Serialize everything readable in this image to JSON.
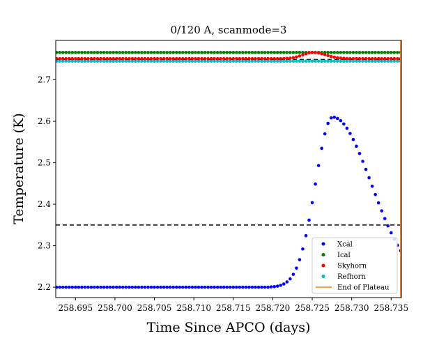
{
  "chart_data": {
    "type": "scatter",
    "title": "0/120 A, scanmode=3",
    "xlabel": "Time Since APCO (days)",
    "ylabel": "Temperature (K)",
    "xlim": [
      258.6925,
      258.7363
    ],
    "ylim": [
      2.175,
      2.795
    ],
    "x_ticks": [
      258.695,
      258.7,
      258.705,
      258.71,
      258.715,
      258.72,
      258.725,
      258.73,
      258.735
    ],
    "x_tick_labels": [
      "258.695",
      "258.700",
      "258.705",
      "258.710",
      "258.715",
      "258.720",
      "258.725",
      "258.730",
      "258.735"
    ],
    "y_ticks": [
      2.2,
      2.3,
      2.4,
      2.5,
      2.6,
      2.7
    ],
    "y_tick_labels": [
      "2.2",
      "2.3",
      "2.4",
      "2.5",
      "2.6",
      "2.7"
    ],
    "grid": false,
    "legend_position": "lower-right",
    "x_sampling": {
      "start": 258.6926,
      "end": 258.7362,
      "step": 0.0004
    },
    "series": [
      {
        "name": "Xcal",
        "color": "#0000ff",
        "marker": "dot",
        "model": {
          "baseline": 2.2,
          "rise_start": 258.7196,
          "peak_x": 258.7276,
          "peak_y": 2.61,
          "rise_width": 0.0022,
          "fall_width": 0.0049
        }
      },
      {
        "name": "Ical",
        "color": "#008000",
        "marker": "dot",
        "model": {
          "baseline": 2.766
        }
      },
      {
        "name": "Skyhorn",
        "color": "#ff0000",
        "marker": "dot",
        "model": {
          "baseline": 2.751,
          "peak_x": 258.7251,
          "peak_y": 2.766,
          "rise_width": 0.0013,
          "fall_width": 0.0016
        }
      },
      {
        "name": "Refhorn",
        "color": "#00bfbf",
        "marker": "dot",
        "model": {
          "baseline": 2.745
        }
      },
      {
        "name": "End of Plateau",
        "color": "#ff7f0e",
        "marker": "line",
        "x": 258.7362
      }
    ],
    "reference_lines": [
      {
        "y": 2.35,
        "style": "dashed",
        "color": "#000000",
        "x_range": [
          258.6925,
          258.7363
        ]
      },
      {
        "y": 2.749,
        "style": "dashed",
        "color": "#000000",
        "x_range": [
          258.6925,
          258.7363
        ]
      }
    ]
  }
}
